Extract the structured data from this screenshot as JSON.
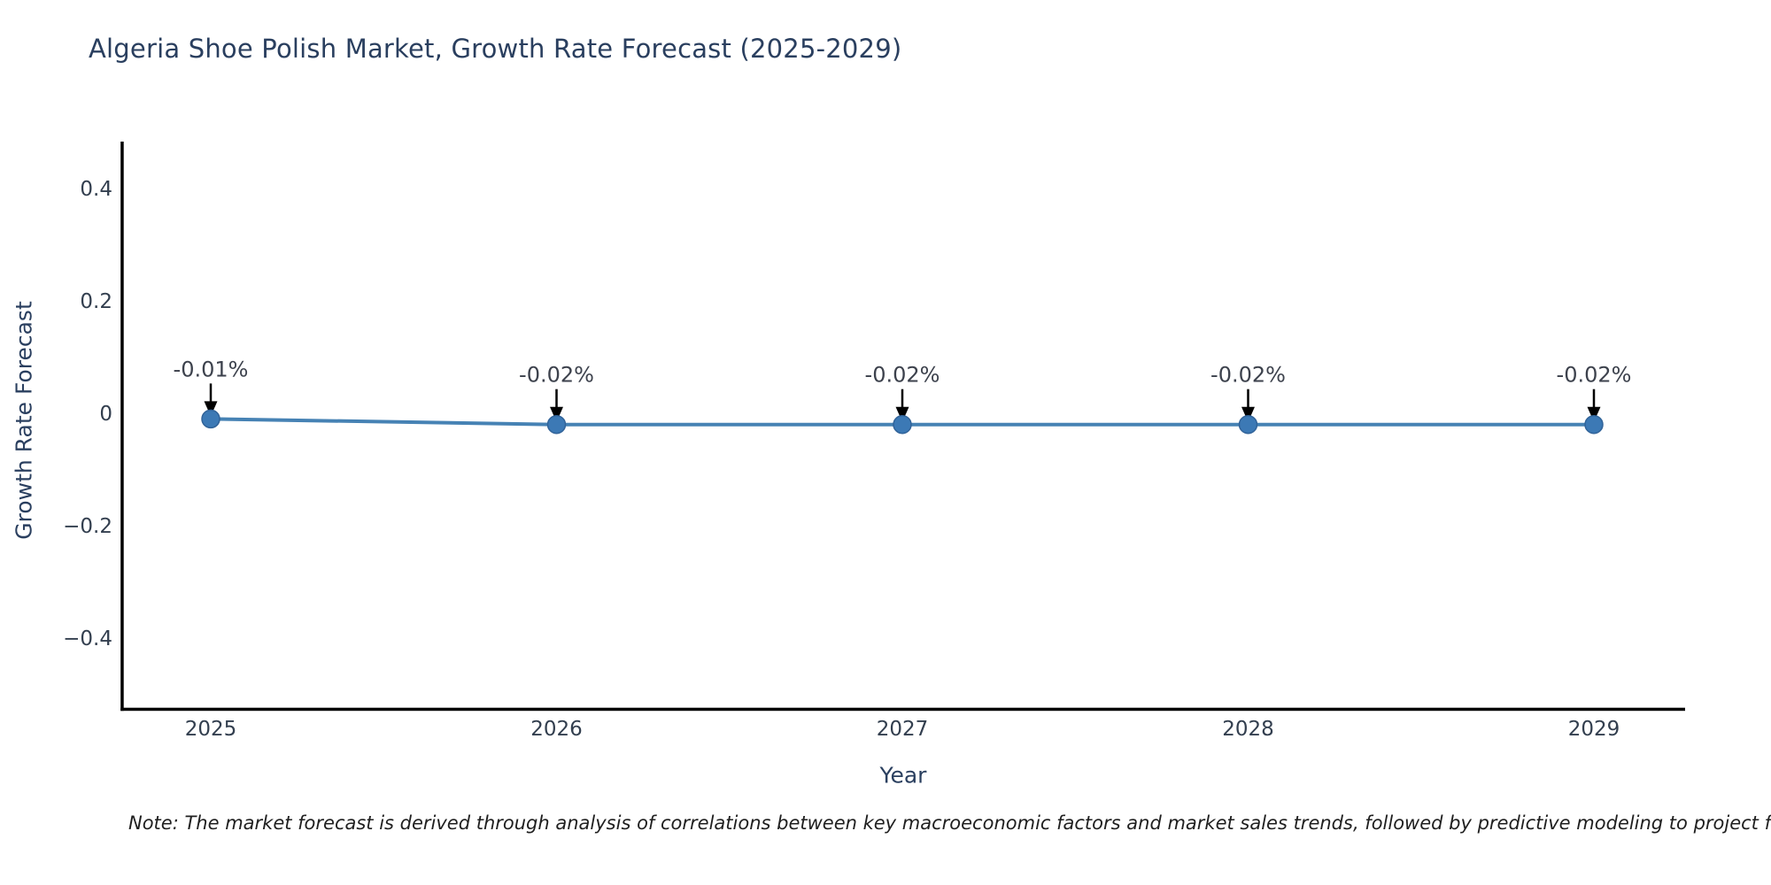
{
  "page": {
    "background": "#ffffff"
  },
  "chart_data": {
    "type": "line",
    "title": "Algeria Shoe Polish Market, Growth Rate Forecast (2025-2029)",
    "xlabel": "Year",
    "ylabel": "Growth Rate Forecast",
    "x": [
      2025,
      2026,
      2027,
      2028,
      2029
    ],
    "xtick_labels": [
      "2025",
      "2026",
      "2027",
      "2028",
      "2029"
    ],
    "series": [
      {
        "name": "Growth Rate Forecast",
        "values": [
          -0.01,
          -0.02,
          -0.02,
          -0.02,
          -0.02
        ]
      }
    ],
    "point_labels": [
      "-0.01%",
      "-0.02%",
      "-0.02%",
      "-0.02%",
      "-0.02%"
    ],
    "ylim": [
      -0.5,
      0.5
    ],
    "yticks": [
      0.4,
      0.2,
      0,
      -0.2,
      -0.4
    ],
    "ytick_labels": [
      "0.4",
      "0.2",
      "0",
      "−0.2",
      "−0.4"
    ],
    "grid": false,
    "legend_position": "none",
    "colors": {
      "line": "#4682b4",
      "marker_fill": "#3c79b5",
      "marker_edge": "#316399",
      "arrow": "#000000",
      "axis": "#000000",
      "tick_text": "#333f4f",
      "annotation_text": "#3d424d",
      "title_text": "#2a3f5f"
    }
  },
  "note": {
    "text": "Note: The market forecast is derived through analysis of correlations between key macroeconomic factors and market sales trends, followed by predictive modeling to project future sa"
  }
}
